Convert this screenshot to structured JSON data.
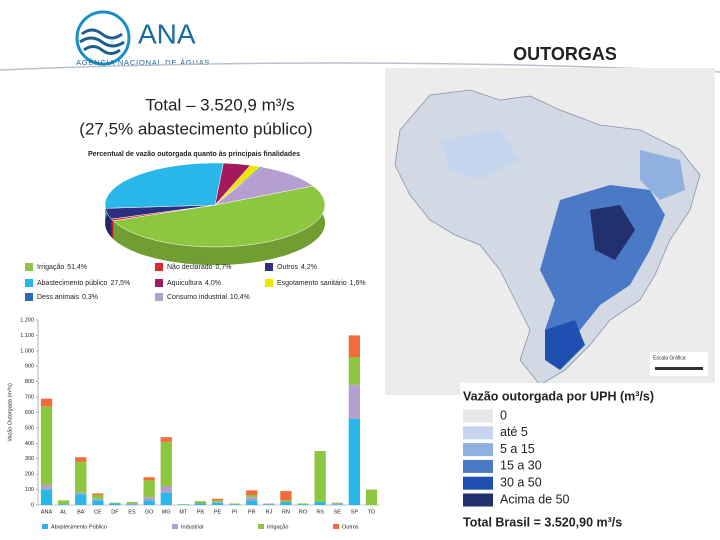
{
  "logo": {
    "name": "ANA",
    "subtitle": "AGÊNCIA NACIONAL DE ÁGUAS"
  },
  "slide_title": "OUTORGAS",
  "total": "Total – 3.520,9 m³/s",
  "subtitle": "(27,5% abastecimento público)",
  "chart_data": [
    {
      "type": "pie",
      "title": "Percentual de vazão outorgada quanto às principais finalidades",
      "categories": [
        "Irrigação",
        "Não declarado",
        "Outros",
        "Abastecimento público",
        "Aquicultura",
        "Esgotamento sanitário",
        "Dess animais",
        "Consumo industrial"
      ],
      "values": [
        51.4,
        0.7,
        4.2,
        27.5,
        4.0,
        1.6,
        0.3,
        10.4
      ],
      "value_labels": [
        "51,4%",
        "0,7%",
        "4,2%",
        "27,5%",
        "4,0%",
        "1,6%",
        "0,3%",
        "10,4%"
      ],
      "colors": [
        "#8dc63f",
        "#e0262b",
        "#2a2f7f",
        "#29b6e8",
        "#a3195b",
        "#f2e500",
        "#2b6cb8",
        "#b59fd0"
      ]
    },
    {
      "type": "bar",
      "ylabel": "Vazão Outorgada (m³/s)",
      "categories": [
        "ANA",
        "AL",
        "BA",
        "CE",
        "DF",
        "ES",
        "GO",
        "MG",
        "MT",
        "PB",
        "PE",
        "PI",
        "PR",
        "RJ",
        "RN",
        "RO",
        "RS",
        "SE",
        "SP",
        "TO"
      ],
      "series": [
        {
          "name": "Abastecimento Público",
          "color": "#29b6e8",
          "values": [
            100,
            5,
            70,
            30,
            10,
            5,
            30,
            80,
            3,
            10,
            15,
            5,
            30,
            5,
            20,
            5,
            20,
            5,
            560,
            0
          ]
        },
        {
          "name": "Industrial",
          "color": "#b59fd0",
          "values": [
            30,
            0,
            10,
            10,
            0,
            5,
            20,
            40,
            0,
            0,
            5,
            0,
            20,
            5,
            0,
            0,
            0,
            5,
            220,
            0
          ]
        },
        {
          "name": "Irrigação",
          "color": "#8dc63f",
          "values": [
            510,
            25,
            200,
            25,
            5,
            10,
            110,
            290,
            2,
            15,
            10,
            5,
            15,
            0,
            10,
            5,
            330,
            5,
            180,
            100
          ]
        },
        {
          "name": "Outros",
          "color": "#f26b3a",
          "values": [
            50,
            0,
            30,
            10,
            0,
            0,
            20,
            30,
            0,
            0,
            10,
            0,
            30,
            0,
            60,
            0,
            0,
            0,
            140,
            0
          ]
        }
      ],
      "ylim": [
        0,
        1200
      ],
      "yticks": [
        0,
        100,
        200,
        300,
        400,
        500,
        600,
        700,
        800,
        900,
        {
          "value": 1000,
          "label": "1.000"
        },
        {
          "value": 1100,
          "label": "1.100"
        },
        {
          "value": 1200,
          "label": "1.200"
        }
      ],
      "grid": false,
      "stacked": true
    }
  ],
  "map": {
    "scale_label": "Escala Gráfica",
    "legend_title": "Vazão outorgada por UPH (m³/s)",
    "classes": [
      {
        "label": "0",
        "color": "#e6e6e6"
      },
      {
        "label": "até 5",
        "color": "#c6d5ee"
      },
      {
        "label": "5 a 15",
        "color": "#8fb0e0"
      },
      {
        "label": "15 a 30",
        "color": "#4a7ac6"
      },
      {
        "label": "30 a 50",
        "color": "#1f4fb0"
      },
      {
        "label": "Acima de 50",
        "color": "#22306e"
      }
    ],
    "total": "Total Brasil = 3.520,90 m³/s"
  }
}
